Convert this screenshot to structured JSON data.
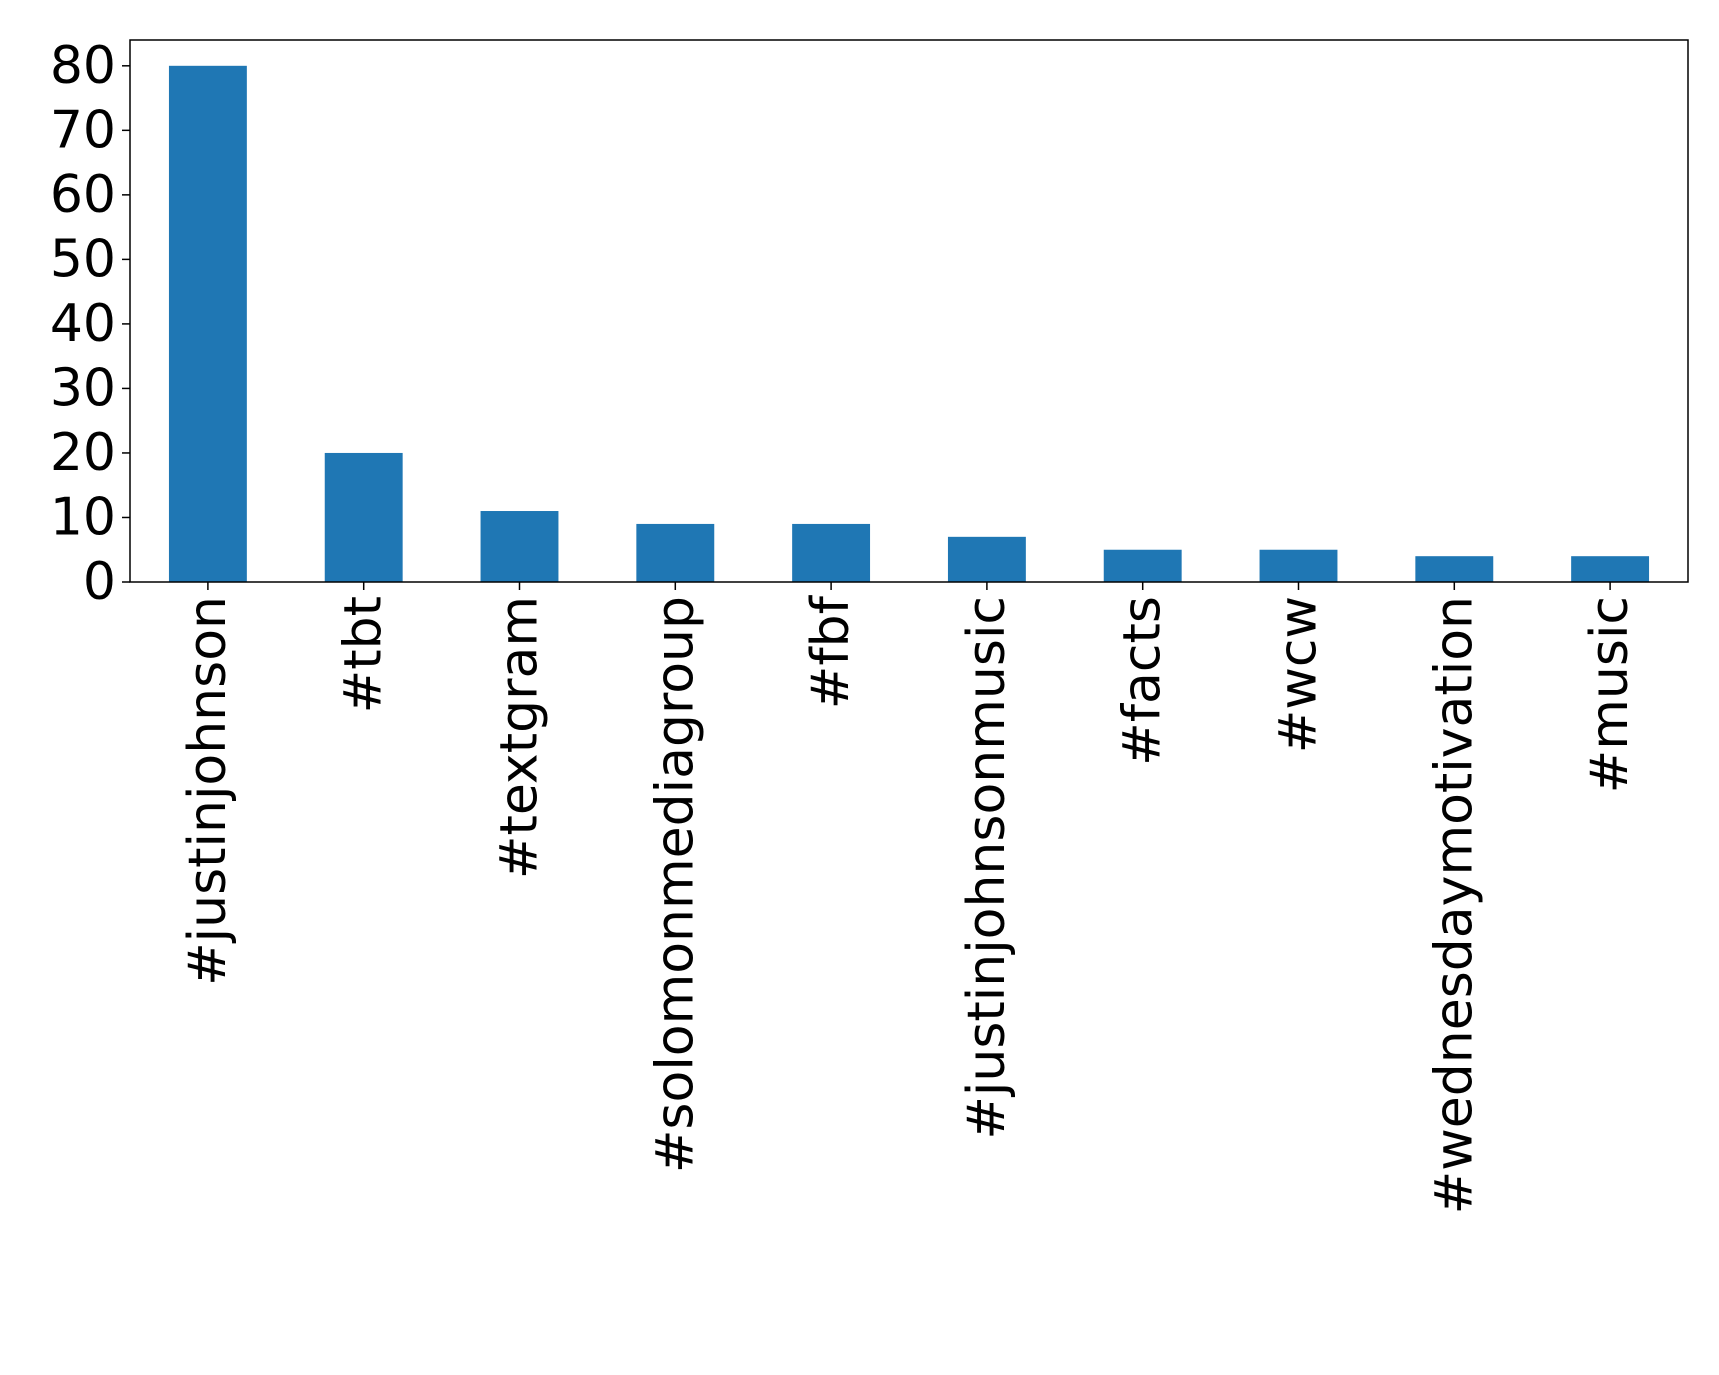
{
  "chart_data": {
    "type": "bar",
    "categories": [
      "#justinjohnson",
      "#tbt",
      "#textgram",
      "#solomonmediagroup",
      "#fbf",
      "#justinjohnsonmusic",
      "#facts",
      "#wcw",
      "#wednesdaymotivation",
      "#music"
    ],
    "values": [
      80,
      20,
      11,
      9,
      9,
      7,
      5,
      5,
      4,
      4
    ],
    "title": "",
    "xlabel": "",
    "ylabel": "",
    "ylim": [
      0,
      84
    ],
    "yticks": [
      0,
      10,
      20,
      30,
      40,
      50,
      60,
      70,
      80
    ],
    "grid": false,
    "legend": "none",
    "bar_color": "#1f77b4"
  }
}
